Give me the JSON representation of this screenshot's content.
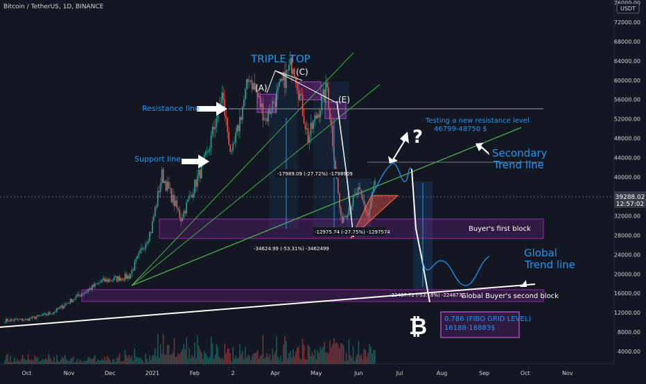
{
  "header": {
    "symbol_line": "Bitcoin / TetherUS, 1D, BINANCE",
    "currency": "USDT"
  },
  "price_axis": {
    "ticks": [
      "76000.00",
      "72000.00",
      "68000.00",
      "64000.00",
      "60000.00",
      "56000.00",
      "52000.00",
      "48000.00",
      "44000.00",
      "40000.00",
      "36000.00",
      "32000.00",
      "28000.00",
      "24000.00",
      "20000.00",
      "16000.00",
      "12000.00",
      "8000.00",
      "4000.00"
    ],
    "last_price": "39288.02",
    "countdown": "12:57:02"
  },
  "time_axis": {
    "labels": [
      "Oct",
      "Nov",
      "Dec",
      "2021",
      "Feb",
      "2",
      "Apr",
      "May",
      "Jun",
      "Jul",
      "Aug",
      "Sep",
      "Oct",
      "Nov"
    ]
  },
  "annotations": {
    "triple_top": "TRIPLE TOP",
    "peak_a": "(A)",
    "peak_c": "(C)",
    "peak_e": "(E)",
    "resistance": "Resistance line",
    "support": "Support line",
    "testing_1": "Testing a new resistance level",
    "testing_2": "46799-48750 $",
    "question": "?",
    "secondary_1": "Secondary",
    "secondary_2": "Trend line",
    "global_1": "Global",
    "global_2": "Trend line",
    "buyer_first": "Buyer's first block",
    "buyer_second": "Global Buyer's second block",
    "measure_1": "-17989.09 (-27.72%) -1798909",
    "measure_2": "-12975.74 (-27.75%) -1297574",
    "measure_3": "-34624.99 (-53.31%) -3462499",
    "measure_4": "-22487.72 (-53.18%) -2248772",
    "fibo_1": "0.786 (FIBO GRID LEVEL)",
    "fibo_2": "16188-18883$",
    "btc_symbol": "₿"
  },
  "colors": {
    "background": "#131722",
    "up": "#26a69a",
    "down": "#ef5350",
    "annotation_blue": "#2196f3",
    "zone_purple": "#9c27b0",
    "trend_green": "#4caf50",
    "global_trend": "#ffffff",
    "last_price": "#787b86"
  },
  "chart_data": {
    "type": "candlestick",
    "title": "Bitcoin / TetherUS, 1D, BINANCE",
    "ylim": [
      0,
      80000
    ],
    "x_range": [
      "2020-09-15",
      "2021-11-30"
    ],
    "grid": false,
    "price_path": [
      [
        "2020-09-15",
        10400
      ],
      [
        "2020-10-01",
        10600
      ],
      [
        "2020-10-20",
        12000
      ],
      [
        "2020-11-05",
        15000
      ],
      [
        "2020-11-25",
        18500
      ],
      [
        "2020-12-15",
        19500
      ],
      [
        "2020-12-31",
        29000
      ],
      [
        "2021-01-08",
        40500
      ],
      [
        "2021-01-22",
        31500
      ],
      [
        "2021-02-10",
        44500
      ],
      [
        "2021-02-21",
        57000
      ],
      [
        "2021-02-28",
        44000
      ],
      [
        "2021-03-13",
        61000
      ],
      [
        "2021-03-25",
        52000
      ],
      [
        "2021-04-14",
        64000
      ],
      [
        "2021-04-25",
        48000
      ],
      [
        "2021-05-09",
        58500
      ],
      [
        "2021-05-19",
        31000
      ],
      [
        "2021-06-01",
        37000
      ],
      [
        "2021-06-08",
        32000
      ],
      [
        "2021-06-13",
        39288
      ]
    ],
    "levels": [
      {
        "name": "Resistance line",
        "price": 58700
      },
      {
        "name": "Testing a new resistance level",
        "price": 46800
      }
    ],
    "zones": [
      {
        "name": "Buyer's first block",
        "from": 29500,
        "to": 34500
      },
      {
        "name": "Global Buyer's second block",
        "from": 16188,
        "to": 18883
      }
    ],
    "measurements": [
      {
        "label": "-17989.09 (-27.72%) -1798909",
        "change": -17989.09,
        "pct": -27.72
      },
      {
        "label": "-12975.74 (-27.75%) -1297574",
        "change": -12975.74,
        "pct": -27.75
      },
      {
        "label": "-34624.99 (-53.31%) -3462499",
        "change": -34624.99,
        "pct": -53.31
      },
      {
        "label": "-22487.72 (-53.18%) -2248772",
        "change": -22487.72,
        "pct": -53.18
      }
    ],
    "last_price": 39288.02
  }
}
